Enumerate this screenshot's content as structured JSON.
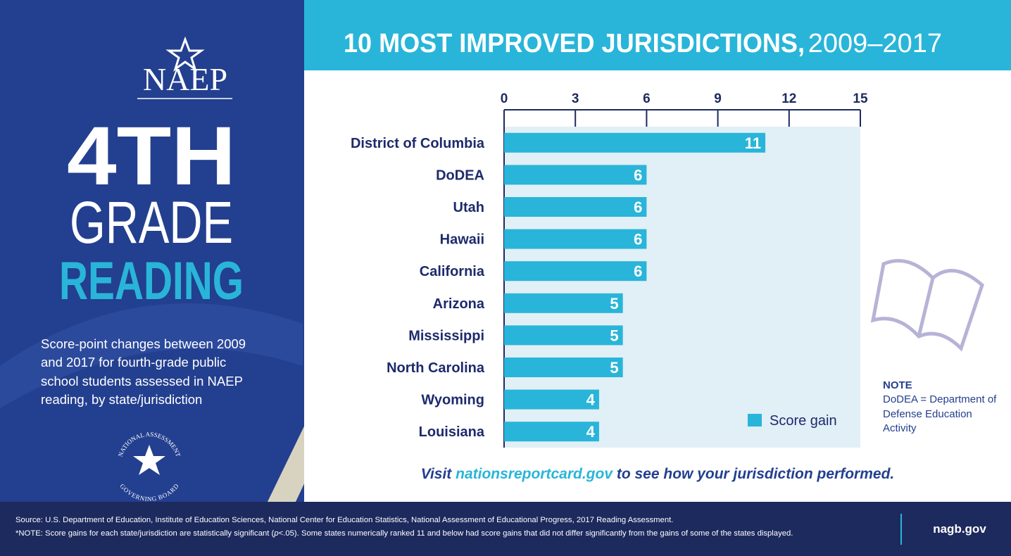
{
  "header": {
    "logo": "NAEP",
    "grade_number": "4TH",
    "grade_word": "GRADE",
    "subject": "READING",
    "description": "Score-point changes between 2009 and 2017 for fourth-grade public school students assessed in NAEP reading, by state/jurisdiction",
    "board_logo_top": "NATIONAL ASSESSMENT",
    "board_logo_bottom": "GOVERNING BOARD"
  },
  "chart_data": {
    "type": "hbar",
    "title": "10 MOST IMPROVED JURISDICTIONS,",
    "title_years": "2009–2017",
    "categories": [
      "District of Columbia",
      "DoDEA",
      "Utah",
      "Hawaii",
      "California",
      "Arizona",
      "Mississippi",
      "North Carolina",
      "Wyoming",
      "Louisiana"
    ],
    "series": [
      {
        "name": "Score gain",
        "color": "#29b5d9",
        "values": [
          11,
          6,
          6,
          6,
          6,
          5,
          5,
          5,
          4,
          4
        ]
      }
    ],
    "xlim": [
      0,
      15
    ],
    "xticks": [
      0,
      3,
      6,
      9,
      12,
      15
    ],
    "legend": "lower right"
  },
  "call_to_action": {
    "prefix": "Visit ",
    "link": "nationsreportcard.gov",
    "suffix": " to see how your jurisdiction performed."
  },
  "note": {
    "heading": "NOTE",
    "text": "DoDEA = Department of Defense Education Activity"
  },
  "footer": {
    "source": "Source: U.S. Department of Education, Institute of Education Sciences, National Center for Education Statistics, National Assessment of Educational Progress, 2017 Reading Assessment.",
    "note_parts": [
      "*NOTE: Score gains for each state/jurisdiction are statistically significant (",
      "p",
      "<.05). Some states numerically ranked 11 and below had score gains that did not differ significantly from the gains of some of the states displayed."
    ],
    "website": "nagb.gov"
  }
}
